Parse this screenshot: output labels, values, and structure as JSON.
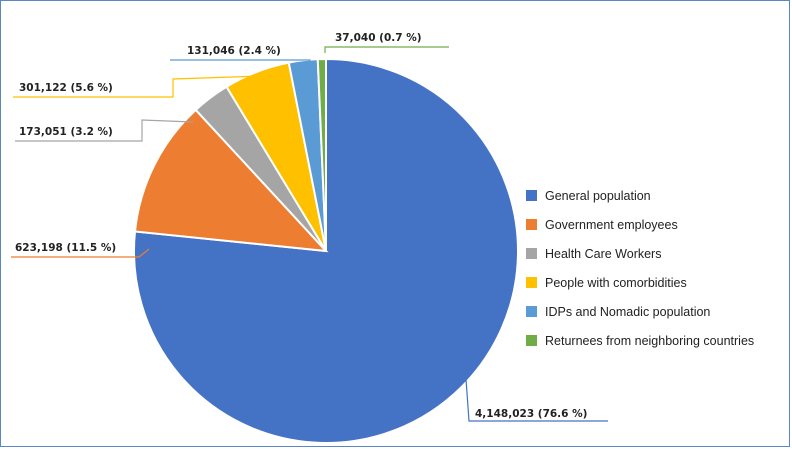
{
  "chart_data": {
    "type": "pie",
    "title": "",
    "legend_position": "right",
    "slices": [
      {
        "name": "General population",
        "value": 4148023,
        "percent": 76.6,
        "label": "4,148,023 (76.6 %)",
        "color": "#4472C4"
      },
      {
        "name": "Government employees",
        "value": 623198,
        "percent": 11.5,
        "label": "623,198 (11.5 %)",
        "color": "#ED7D31"
      },
      {
        "name": "Health Care Workers",
        "value": 173051,
        "percent": 3.2,
        "label": "173,051 (3.2 %)",
        "color": "#A5A5A5"
      },
      {
        "name": "People with comorbidities",
        "value": 301122,
        "percent": 5.6,
        "label": "301,122 (5.6 %)",
        "color": "#FFC000"
      },
      {
        "name": "IDPs and Nomadic population",
        "value": 131046,
        "percent": 2.4,
        "label": "131,046 (2.4 %)",
        "color": "#5B9BD5"
      },
      {
        "name": "Returnees from neighboring countries",
        "value": 37040,
        "percent": 0.7,
        "label": "37,040 (0.7 %)",
        "color": "#70AD47"
      }
    ]
  }
}
